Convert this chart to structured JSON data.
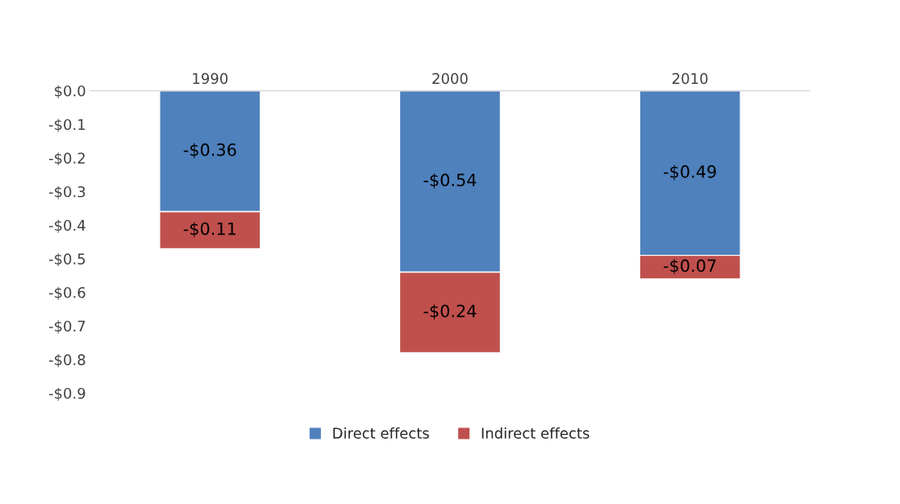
{
  "chart_data": {
    "type": "bar",
    "stacked": true,
    "categories": [
      "1990",
      "2000",
      "2010"
    ],
    "series": [
      {
        "name": "Direct effects",
        "color": "#4f81bd",
        "values": [
          -0.36,
          -0.54,
          -0.49
        ],
        "value_labels": [
          "-$0.36",
          "-$0.54",
          "-$0.49"
        ]
      },
      {
        "name": "Indirect effects",
        "color": "#c0504d",
        "values": [
          -0.11,
          -0.24,
          -0.07
        ],
        "value_labels": [
          "-$0.11",
          "-$0.24",
          "-$0.07"
        ]
      }
    ],
    "ylim": [
      -0.9,
      0.0
    ],
    "yticks": [
      {
        "value": 0.0,
        "label": "$0.0"
      },
      {
        "value": -0.1,
        "label": "-$0.1"
      },
      {
        "value": -0.2,
        "label": "-$0.2"
      },
      {
        "value": -0.3,
        "label": "-$0.3"
      },
      {
        "value": -0.4,
        "label": "-$0.4"
      },
      {
        "value": -0.5,
        "label": "-$0.5"
      },
      {
        "value": -0.6,
        "label": "-$0.6"
      },
      {
        "value": -0.7,
        "label": "-$0.7"
      },
      {
        "value": -0.8,
        "label": "-$0.8"
      },
      {
        "value": -0.9,
        "label": "-$0.9"
      }
    ],
    "grid": false,
    "legend": "bottom"
  }
}
